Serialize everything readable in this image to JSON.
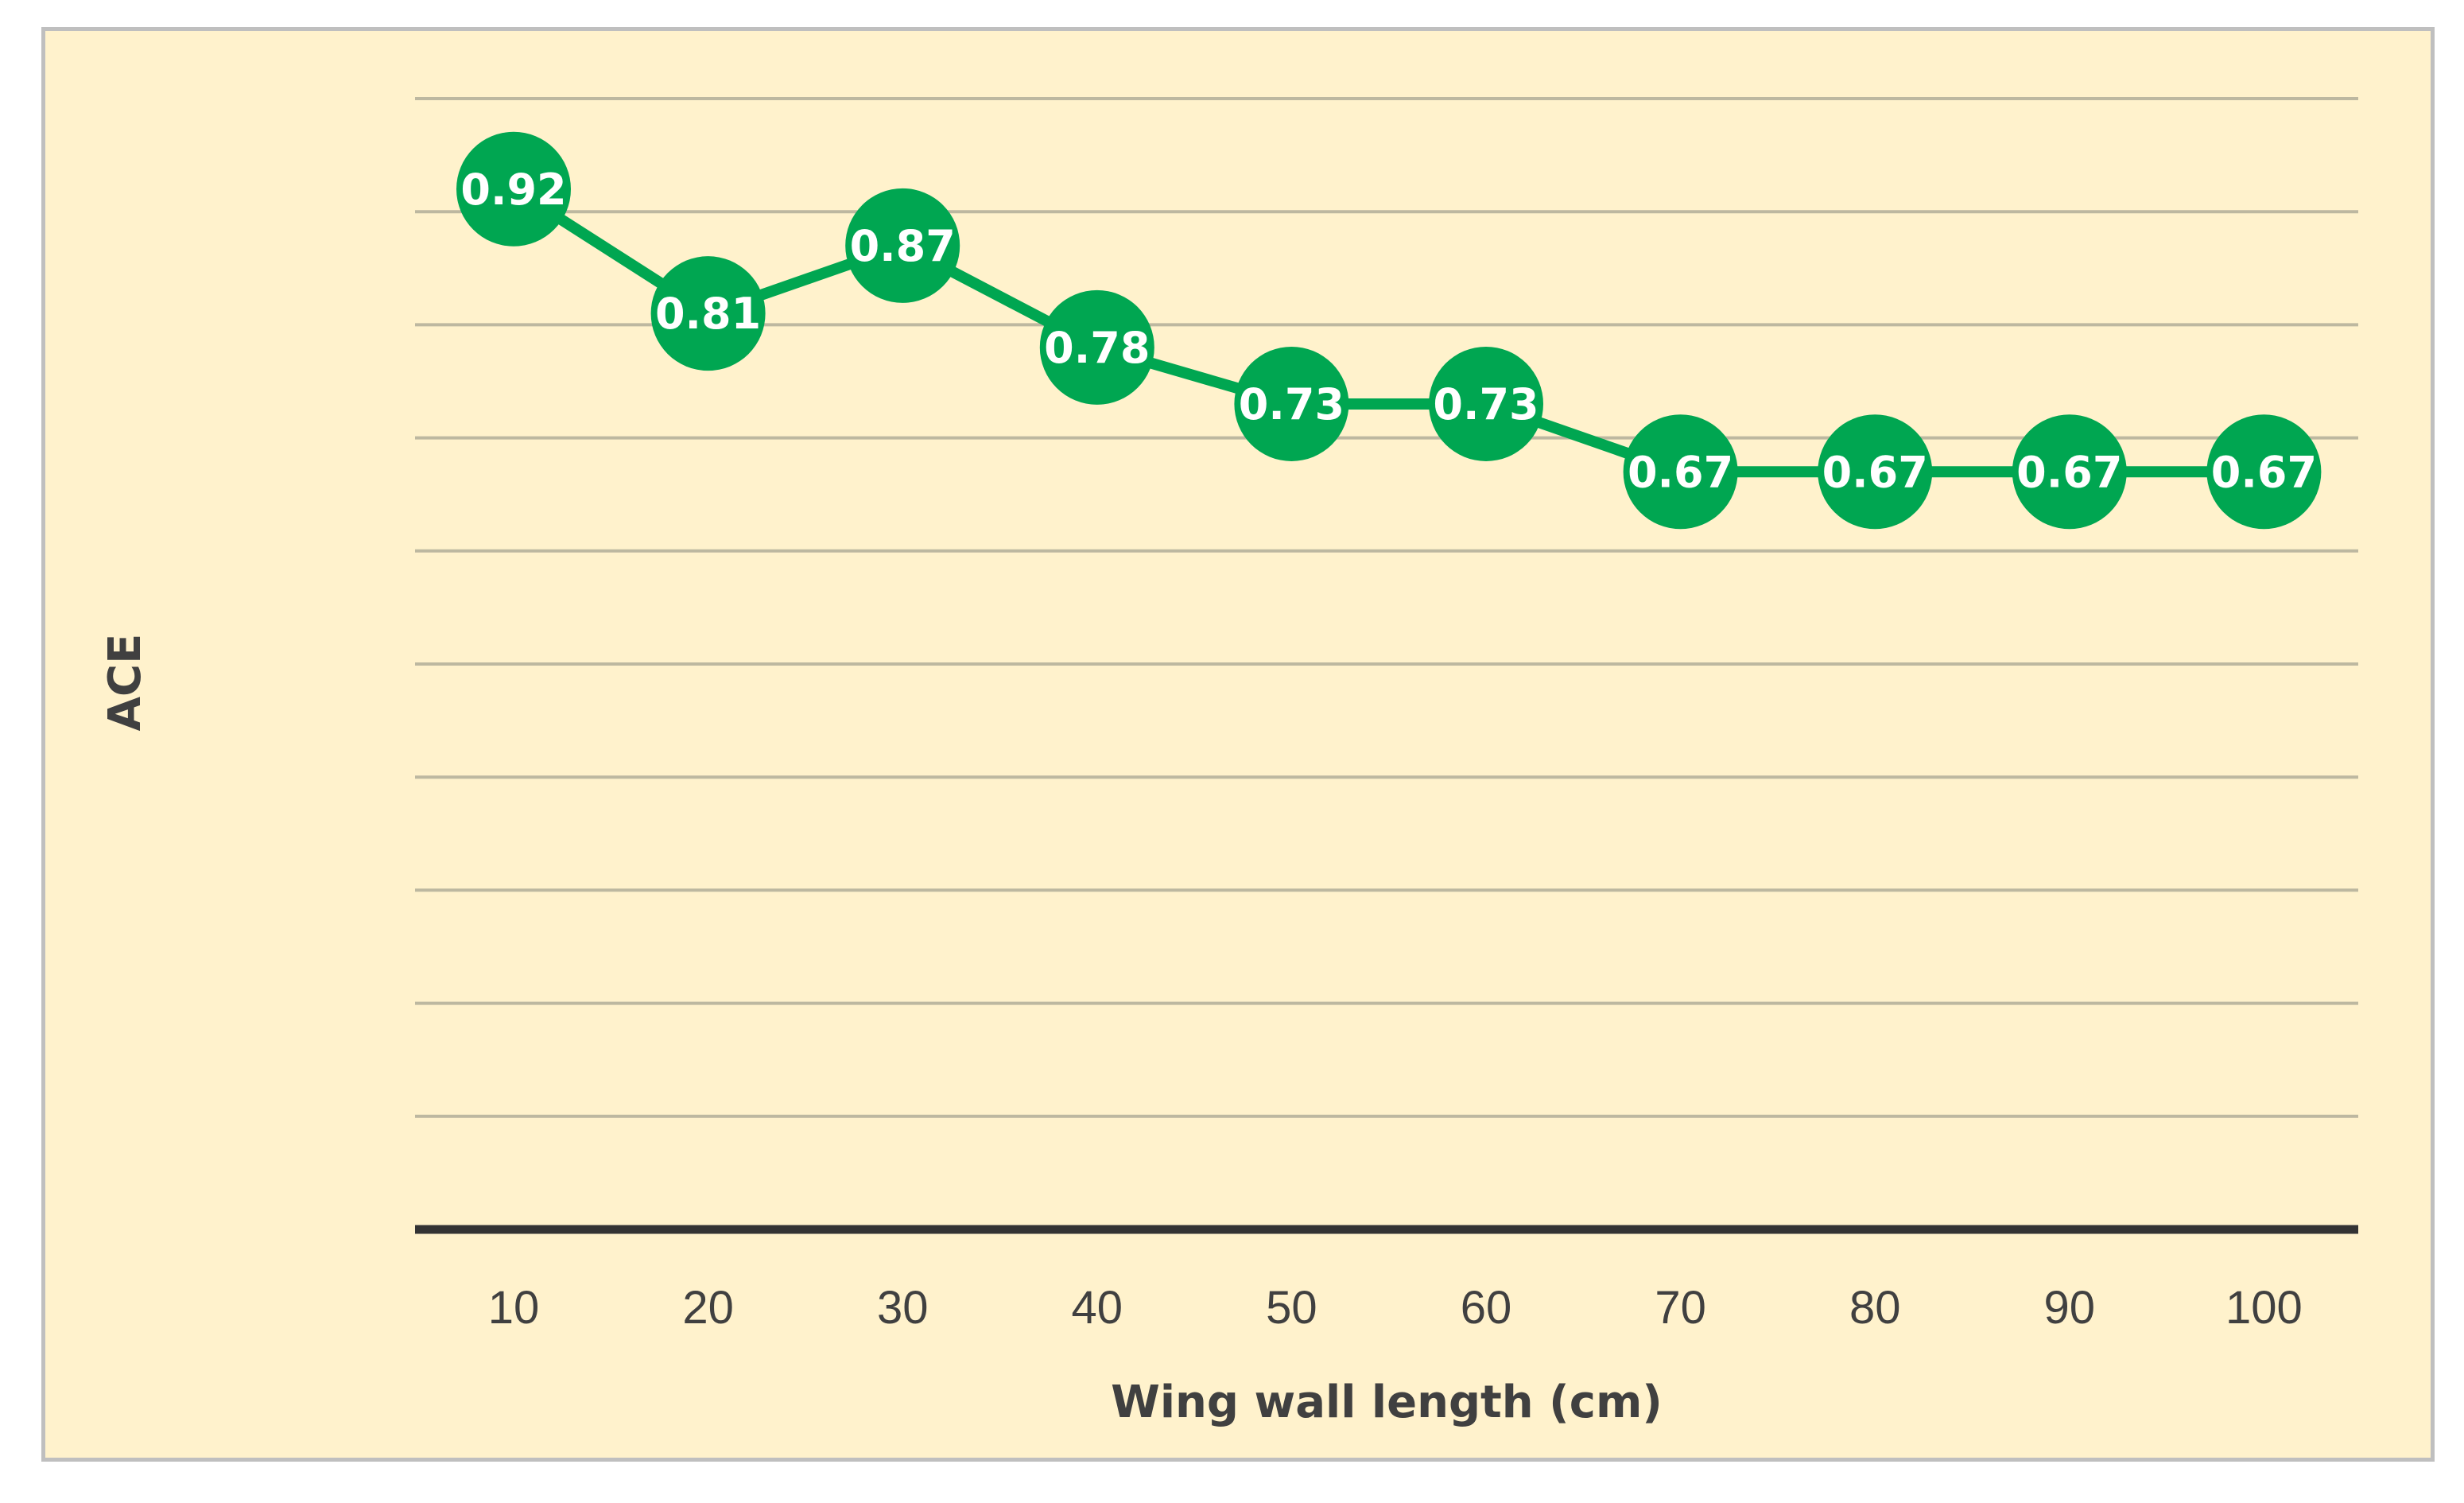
{
  "chart_data": {
    "type": "line",
    "xlabel": "Wing wall length (cm)",
    "ylabel": "ACE",
    "categories": [
      "10",
      "20",
      "30",
      "40",
      "50",
      "60",
      "70",
      "80",
      "90",
      "100"
    ],
    "series": [
      {
        "values": [
          0.92,
          0.81,
          0.87,
          0.78,
          0.73,
          0.73,
          0.67,
          0.67,
          0.67,
          0.67
        ]
      }
    ],
    "data_labels": [
      "0.92",
      "0.81",
      "0.87",
      "0.78",
      "0.73",
      "0.73",
      "0.67",
      "0.67",
      "0.67",
      "0.67"
    ],
    "ylim": [
      0,
      1.0
    ],
    "ytick_step": 0.1,
    "y_tick_labels_shown": false,
    "grid": true,
    "legend": "none",
    "colors": {
      "series": "#00A651",
      "background": "#FFF2CC",
      "border": "#BFBFBF",
      "gridline": "#BDB8A0",
      "axis_line": "#333333",
      "text": "#404040",
      "label_text": "#FFFFFF"
    }
  }
}
